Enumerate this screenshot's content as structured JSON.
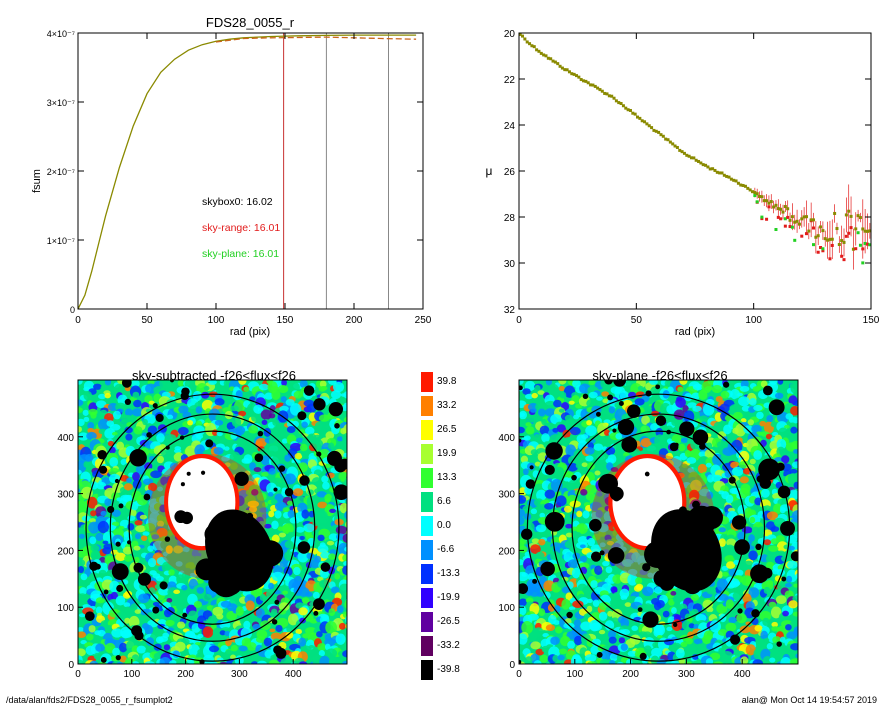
{
  "chart_data": [
    {
      "type": "line",
      "title": "FDS28_0055_r",
      "xlabel": "rad (pix)",
      "ylabel": "fsum",
      "xlim": [
        0,
        250
      ],
      "ylim": [
        0,
        4e-07
      ],
      "xticks": [
        "0",
        "50",
        "100",
        "150",
        "200",
        "250"
      ],
      "yticks": [
        "0",
        "1×10⁻⁷",
        "2×10⁻⁷",
        "3×10⁻⁷",
        "4×10⁻⁷"
      ],
      "series": [
        {
          "color": "#8a8a00",
          "x": [
            0,
            5,
            10,
            15,
            20,
            30,
            40,
            50,
            60,
            70,
            80,
            90,
            100,
            110,
            120,
            130,
            140,
            150,
            160,
            180,
            200,
            220,
            245
          ],
          "y": [
            0,
            2e-08,
            5.5e-08,
            9.5e-08,
            1.35e-07,
            2.05e-07,
            2.65e-07,
            3.12e-07,
            3.43e-07,
            3.62e-07,
            3.75e-07,
            3.83e-07,
            3.88e-07,
            3.91e-07,
            3.93e-07,
            3.94e-07,
            3.95e-07,
            3.955e-07,
            3.96e-07,
            3.965e-07,
            3.97e-07,
            3.97e-07,
            3.97e-07
          ]
        },
        {
          "color": "#c9641a",
          "x": [
            100,
            120,
            140,
            160,
            180,
            200,
            220,
            245
          ],
          "y": [
            3.87e-07,
            3.92e-07,
            3.93e-07,
            3.935e-07,
            3.94e-07,
            3.93e-07,
            3.92e-07,
            3.91e-07
          ]
        }
      ],
      "vlines": [
        {
          "x": 149,
          "color": "#c83232"
        },
        {
          "x": 180,
          "color": "#888888"
        },
        {
          "x": 225,
          "color": "#888888"
        }
      ],
      "annotations": [
        {
          "text": "skybox0: 16.02",
          "color": "#000000"
        },
        {
          "text": "sky-range: 16.01",
          "color": "#e21b1b"
        },
        {
          "text": "sky-plane: 16.01",
          "color": "#22d022"
        }
      ]
    },
    {
      "type": "scatter",
      "title": "",
      "xlabel": "rad (pix)",
      "ylabel": "μ",
      "xlim": [
        0,
        150
      ],
      "ylim": [
        32,
        20
      ],
      "xticks": [
        "0",
        "50",
        "100",
        "150"
      ],
      "yticks": [
        "20",
        "22",
        "24",
        "26",
        "28",
        "30",
        "32"
      ],
      "series_colors": {
        "main": "#8a8a00",
        "range": "#e21b1b",
        "plane": "#22d022",
        "errorbar": "#e21b1b"
      },
      "profile_knots": {
        "x": [
          0,
          5,
          10,
          20,
          30,
          40,
          50,
          60,
          70,
          80,
          90,
          100,
          110,
          120,
          130,
          140,
          150
        ],
        "y": [
          20,
          20.5,
          20.9,
          21.6,
          22.2,
          22.8,
          23.6,
          24.4,
          25.2,
          25.8,
          26.3,
          26.9,
          27.6,
          28.1,
          28.4,
          28.6,
          28.2
        ]
      }
    },
    {
      "type": "heatmap",
      "title": "sky-subtracted -f26<flux<f26",
      "xlim": [
        0,
        500
      ],
      "ylim": [
        0,
        500
      ],
      "xticks": [
        "0",
        "100",
        "200",
        "300",
        "400"
      ],
      "yticks": [
        "0",
        "100",
        "200",
        "300",
        "400"
      ]
    },
    {
      "type": "heatmap",
      "title": "sky-plane -f26<flux<f26",
      "xlim": [
        0,
        500
      ],
      "ylim": [
        0,
        500
      ],
      "xticks": [
        "0",
        "100",
        "200",
        "300",
        "400"
      ],
      "yticks": [
        "0",
        "100",
        "200",
        "300",
        "400"
      ]
    }
  ],
  "colorbar": {
    "labels": [
      "39.8",
      "33.2",
      "26.5",
      "19.9",
      "13.3",
      "6.6",
      "0.0",
      "-6.6",
      "-13.3",
      "-19.9",
      "-26.5",
      "-33.2",
      "-39.8"
    ],
    "colors": [
      "#ff1a00",
      "#ff8000",
      "#ffff00",
      "#a8ff30",
      "#30ff30",
      "#00e080",
      "#00ffff",
      "#0090ff",
      "#0030ff",
      "#3000ff",
      "#6000a0",
      "#600060",
      "#000000"
    ]
  },
  "footer": {
    "left": "/data/alan/fds2/FDS28_0055_r_fsumplot2",
    "right": "alan@  Mon Oct 14 19:54:57 2019"
  }
}
